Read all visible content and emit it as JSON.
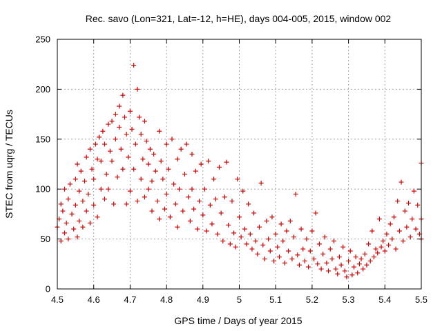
{
  "chart_data": {
    "type": "scatter",
    "title": "Rec. savo (Lon=321, Lat=-12, h=HE), days 004-005, 2015, window 002",
    "xlabel": "GPS time / Days of year 2015",
    "ylabel": "STEC from uqrg / TECUs",
    "xlim": [
      4.5,
      5.5
    ],
    "ylim": [
      0,
      250
    ],
    "x_ticks": [
      "4.5",
      "4.6",
      "4.7",
      "4.8",
      "4.9",
      "5",
      "5.1",
      "5.2",
      "5.3",
      "5.4",
      "5.5"
    ],
    "y_ticks": [
      "0",
      "50",
      "100",
      "150",
      "200",
      "250"
    ],
    "grid": true,
    "marker": "+",
    "color": "#cc0000",
    "series": [
      {
        "values": [
          [
            4.5,
            62
          ],
          [
            4.505,
            70
          ],
          [
            4.51,
            85
          ],
          [
            4.51,
            48
          ],
          [
            4.515,
            78
          ],
          [
            4.52,
            100
          ],
          [
            4.52,
            56
          ],
          [
            4.525,
            66
          ],
          [
            4.53,
            90
          ],
          [
            4.53,
            50
          ],
          [
            4.535,
            105
          ],
          [
            4.54,
            75
          ],
          [
            4.545,
            60
          ],
          [
            4.55,
            110
          ],
          [
            4.55,
            84
          ],
          [
            4.555,
            125
          ],
          [
            4.555,
            52
          ],
          [
            4.56,
            98
          ],
          [
            4.56,
            68
          ],
          [
            4.565,
            118
          ],
          [
            4.57,
            88
          ],
          [
            4.57,
            62
          ],
          [
            4.575,
            108
          ],
          [
            4.58,
            132
          ],
          [
            4.58,
            78
          ],
          [
            4.585,
            95
          ],
          [
            4.59,
            140
          ],
          [
            4.59,
            66
          ],
          [
            4.595,
            120
          ],
          [
            4.6,
            110
          ],
          [
            4.6,
            84
          ],
          [
            4.605,
            145
          ],
          [
            4.61,
            130
          ],
          [
            4.61,
            72
          ],
          [
            4.615,
            152
          ],
          [
            4.62,
            100
          ],
          [
            4.62,
            128
          ],
          [
            4.625,
            158
          ],
          [
            4.63,
            90
          ],
          [
            4.63,
            145
          ],
          [
            4.635,
            115
          ],
          [
            4.64,
            165
          ],
          [
            4.64,
            100
          ],
          [
            4.645,
            138
          ],
          [
            4.65,
            168
          ],
          [
            4.65,
            128
          ],
          [
            4.655,
            85
          ],
          [
            4.66,
            175
          ],
          [
            4.66,
            150
          ],
          [
            4.665,
            112
          ],
          [
            4.67,
            183
          ],
          [
            4.67,
            162
          ],
          [
            4.675,
            140
          ],
          [
            4.68,
            194
          ],
          [
            4.68,
            120
          ],
          [
            4.685,
            172
          ],
          [
            4.69,
            155
          ],
          [
            4.69,
            85
          ],
          [
            4.695,
            132
          ],
          [
            4.7,
            178
          ],
          [
            4.7,
            98
          ],
          [
            4.705,
            160
          ],
          [
            4.71,
            224
          ],
          [
            4.71,
            120
          ],
          [
            4.715,
            145
          ],
          [
            4.72,
            200
          ],
          [
            4.72,
            88
          ],
          [
            4.725,
            172
          ],
          [
            4.73,
            155
          ],
          [
            4.73,
            110
          ],
          [
            4.735,
            130
          ],
          [
            4.74,
            168
          ],
          [
            4.74,
            92
          ],
          [
            4.745,
            148
          ],
          [
            4.75,
            125
          ],
          [
            4.75,
            100
          ],
          [
            4.755,
            140
          ],
          [
            4.76,
            108
          ],
          [
            4.76,
            78
          ],
          [
            4.765,
            135
          ],
          [
            4.77,
            118
          ],
          [
            4.775,
            88
          ],
          [
            4.78,
            158
          ],
          [
            4.78,
            70
          ],
          [
            4.785,
            128
          ],
          [
            4.79,
            110
          ],
          [
            4.795,
            80
          ],
          [
            4.8,
            145
          ],
          [
            4.8,
            95
          ],
          [
            4.805,
            120
          ],
          [
            4.81,
            72
          ],
          [
            4.815,
            150
          ],
          [
            4.82,
            105
          ],
          [
            4.825,
            85
          ],
          [
            4.83,
            130
          ],
          [
            4.83,
            62
          ],
          [
            4.835,
            100
          ],
          [
            4.84,
            140
          ],
          [
            4.845,
            78
          ],
          [
            4.85,
            115
          ],
          [
            4.855,
            145
          ],
          [
            4.86,
            92
          ],
          [
            4.865,
            68
          ],
          [
            4.87,
            135
          ],
          [
            4.87,
            100
          ],
          [
            4.875,
            80
          ],
          [
            4.88,
            118
          ],
          [
            4.885,
            60
          ],
          [
            4.89,
            88
          ],
          [
            4.895,
            125
          ],
          [
            4.9,
            74
          ],
          [
            4.905,
            100
          ],
          [
            4.91,
            58
          ],
          [
            4.915,
            128
          ],
          [
            4.92,
            84
          ],
          [
            4.925,
            65
          ],
          [
            4.93,
            110
          ],
          [
            4.935,
            90
          ],
          [
            4.94,
            55
          ],
          [
            4.945,
            122
          ],
          [
            4.95,
            76
          ],
          [
            4.955,
            48
          ],
          [
            4.96,
            92
          ],
          [
            4.965,
            127
          ],
          [
            4.97,
            64
          ],
          [
            4.975,
            45
          ],
          [
            4.98,
            88
          ],
          [
            4.985,
            56
          ],
          [
            4.99,
            42
          ],
          [
            4.995,
            110
          ],
          [
            5.0,
            72
          ],
          [
            5.005,
            52
          ],
          [
            5.01,
            98
          ],
          [
            5.015,
            60
          ],
          [
            5.02,
            45
          ],
          [
            5.025,
            85
          ],
          [
            5.03,
            55
          ],
          [
            5.035,
            40
          ],
          [
            5.04,
            76
          ],
          [
            5.045,
            48
          ],
          [
            5.05,
            35
          ],
          [
            5.055,
            62
          ],
          [
            5.06,
            106
          ],
          [
            5.065,
            44
          ],
          [
            5.07,
            30
          ],
          [
            5.075,
            68
          ],
          [
            5.08,
            50
          ],
          [
            5.085,
            38
          ],
          [
            5.09,
            72
          ],
          [
            5.095,
            28
          ],
          [
            5.1,
            55
          ],
          [
            5.105,
            42
          ],
          [
            5.11,
            32
          ],
          [
            5.115,
            65
          ],
          [
            5.12,
            48
          ],
          [
            5.125,
            26
          ],
          [
            5.13,
            58
          ],
          [
            5.135,
            38
          ],
          [
            5.14,
            68
          ],
          [
            5.145,
            30
          ],
          [
            5.15,
            52
          ],
          [
            5.155,
            95
          ],
          [
            5.16,
            34
          ],
          [
            5.165,
            24
          ],
          [
            5.17,
            60
          ],
          [
            5.175,
            40
          ],
          [
            5.18,
            28
          ],
          [
            5.185,
            50
          ],
          [
            5.19,
            22
          ],
          [
            5.195,
            38
          ],
          [
            5.2,
            58
          ],
          [
            5.205,
            30
          ],
          [
            5.21,
            76
          ],
          [
            5.215,
            25
          ],
          [
            5.22,
            45
          ],
          [
            5.225,
            20
          ],
          [
            5.23,
            35
          ],
          [
            5.235,
            52
          ],
          [
            5.24,
            26
          ],
          [
            5.245,
            18
          ],
          [
            5.25,
            40
          ],
          [
            5.255,
            30
          ],
          [
            5.26,
            48
          ],
          [
            5.265,
            20
          ],
          [
            5.27,
            15
          ],
          [
            5.275,
            32
          ],
          [
            5.28,
            24
          ],
          [
            5.285,
            42
          ],
          [
            5.29,
            18
          ],
          [
            5.295,
            12
          ],
          [
            5.3,
            28
          ],
          [
            5.305,
            38
          ],
          [
            5.31,
            14
          ],
          [
            5.315,
            22
          ],
          [
            5.32,
            32
          ],
          [
            5.325,
            16
          ],
          [
            5.33,
            25
          ],
          [
            5.335,
            30
          ],
          [
            5.34,
            20
          ],
          [
            5.345,
            35
          ],
          [
            5.35,
            24
          ],
          [
            5.355,
            45
          ],
          [
            5.36,
            28
          ],
          [
            5.365,
            58
          ],
          [
            5.37,
            32
          ],
          [
            5.375,
            40
          ],
          [
            5.38,
            36
          ],
          [
            5.385,
            70
          ],
          [
            5.39,
            42
          ],
          [
            5.395,
            48
          ],
          [
            5.4,
            38
          ],
          [
            5.405,
            55
          ],
          [
            5.41,
            44
          ],
          [
            5.415,
            65
          ],
          [
            5.42,
            50
          ],
          [
            5.425,
            72
          ],
          [
            5.43,
            40
          ],
          [
            5.435,
            88
          ],
          [
            5.44,
            58
          ],
          [
            5.445,
            107
          ],
          [
            5.45,
            48
          ],
          [
            5.455,
            78
          ],
          [
            5.46,
            62
          ],
          [
            5.465,
            86
          ],
          [
            5.47,
            52
          ],
          [
            5.475,
            70
          ],
          [
            5.48,
            98
          ],
          [
            5.485,
            60
          ],
          [
            5.49,
            84
          ],
          [
            5.495,
            55
          ],
          [
            5.5,
            126
          ],
          [
            5.5,
            70
          ],
          [
            5.5,
            50
          ]
        ]
      }
    ]
  }
}
